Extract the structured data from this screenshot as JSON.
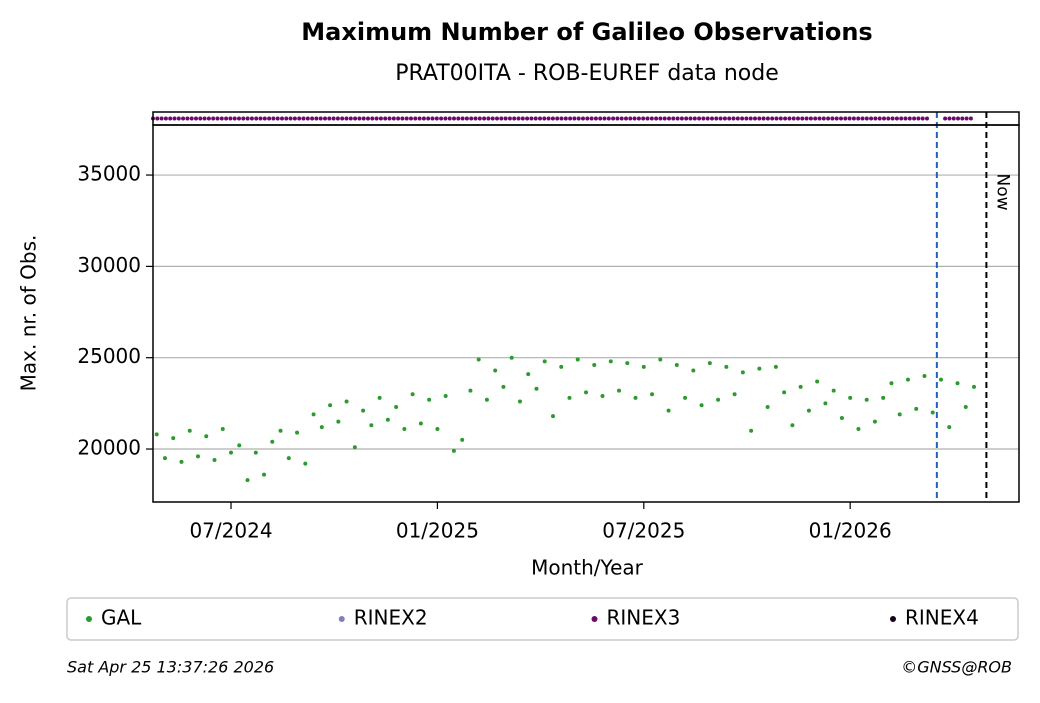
{
  "chart_data": {
    "type": "scatter",
    "title": "Maximum Number of Galileo Observations",
    "subtitle": "PRAT00ITA - ROB-EUREF data node",
    "xlabel": "Month/Year",
    "ylabel": "Max. nr. of Obs.",
    "xlim": [
      2024.311,
      2026.409
    ],
    "ylim": [
      17100,
      37740
    ],
    "xticks": [
      {
        "value": 2024.5,
        "label": "07/2024"
      },
      {
        "value": 2025.0,
        "label": "01/2025"
      },
      {
        "value": 2025.5,
        "label": "07/2025"
      },
      {
        "value": 2026.0,
        "label": "01/2026"
      }
    ],
    "yticks": [
      20000,
      25000,
      30000,
      35000
    ],
    "grid": true,
    "series": [
      {
        "name": "GAL",
        "color": "#2e9a2e",
        "x": [
          2024.32,
          2024.34,
          2024.36,
          2024.38,
          2024.4,
          2024.42,
          2024.44,
          2024.46,
          2024.48,
          2024.5,
          2024.52,
          2024.54,
          2024.56,
          2024.58,
          2024.6,
          2024.62,
          2024.64,
          2024.66,
          2024.68,
          2024.7,
          2024.72,
          2024.74,
          2024.76,
          2024.78,
          2024.8,
          2024.82,
          2024.84,
          2024.86,
          2024.88,
          2024.9,
          2024.92,
          2024.94,
          2024.96,
          2024.98,
          2025.0,
          2025.02,
          2025.04,
          2025.06,
          2025.08,
          2025.1,
          2025.12,
          2025.14,
          2025.16,
          2025.18,
          2025.2,
          2025.22,
          2025.24,
          2025.26,
          2025.28,
          2025.3,
          2025.32,
          2025.34,
          2025.36,
          2025.38,
          2025.4,
          2025.42,
          2025.44,
          2025.46,
          2025.48,
          2025.5,
          2025.52,
          2025.54,
          2025.56,
          2025.58,
          2025.6,
          2025.62,
          2025.64,
          2025.66,
          2025.68,
          2025.7,
          2025.72,
          2025.74,
          2025.76,
          2025.78,
          2025.8,
          2025.82,
          2025.84,
          2025.86,
          2025.88,
          2025.9,
          2025.92,
          2025.94,
          2025.96,
          2025.98,
          2026.0,
          2026.02,
          2026.04,
          2026.06,
          2026.08,
          2026.1,
          2026.12,
          2026.14,
          2026.16,
          2026.18,
          2026.2,
          2026.22,
          2026.24,
          2026.26,
          2026.28,
          2026.3
        ],
        "values": [
          20800,
          19500,
          20600,
          19300,
          21000,
          19600,
          20700,
          19400,
          21100,
          19800,
          20200,
          18300,
          19800,
          18600,
          20400,
          21000,
          19500,
          20900,
          19200,
          21900,
          21200,
          22400,
          21500,
          22600,
          20100,
          22100,
          21300,
          22800,
          21600,
          22300,
          21100,
          23000,
          21400,
          22700,
          21100,
          22900,
          19900,
          20500,
          23200,
          24900,
          22700,
          24300,
          23400,
          25000,
          22600,
          24100,
          23300,
          24800,
          21800,
          24500,
          22800,
          24900,
          23100,
          24600,
          22900,
          24800,
          23200,
          24700,
          22800,
          24500,
          23000,
          24900,
          22100,
          24600,
          22800,
          24300,
          22400,
          24700,
          22700,
          24500,
          23000,
          24200,
          21000,
          24400,
          22300,
          24500,
          23100,
          21300,
          23400,
          22100,
          23700,
          22500,
          23200,
          21700,
          22800,
          21100,
          22700,
          21500,
          22800,
          23600,
          21900,
          23800,
          22200,
          24000,
          22000,
          23800,
          21200,
          23600,
          22300,
          23400
        ]
      },
      {
        "name": "RINEX2",
        "color": "#7f7fbf"
      },
      {
        "name": "RINEX3",
        "color": "#6a0a6a",
        "ranges": [
          [
            2024.311,
            2026.19
          ],
          [
            2026.23,
            2026.3
          ]
        ]
      },
      {
        "name": "RINEX4",
        "color": "#1a0020"
      }
    ],
    "vlines": [
      {
        "x": 2026.21,
        "color": "#1f5fbf"
      },
      {
        "x": 2026.33,
        "color": "#000000",
        "label": "Now"
      }
    ],
    "timestamp": "Sat Apr 25 13:37:26 2026",
    "credit": "©GNSS@ROB"
  }
}
